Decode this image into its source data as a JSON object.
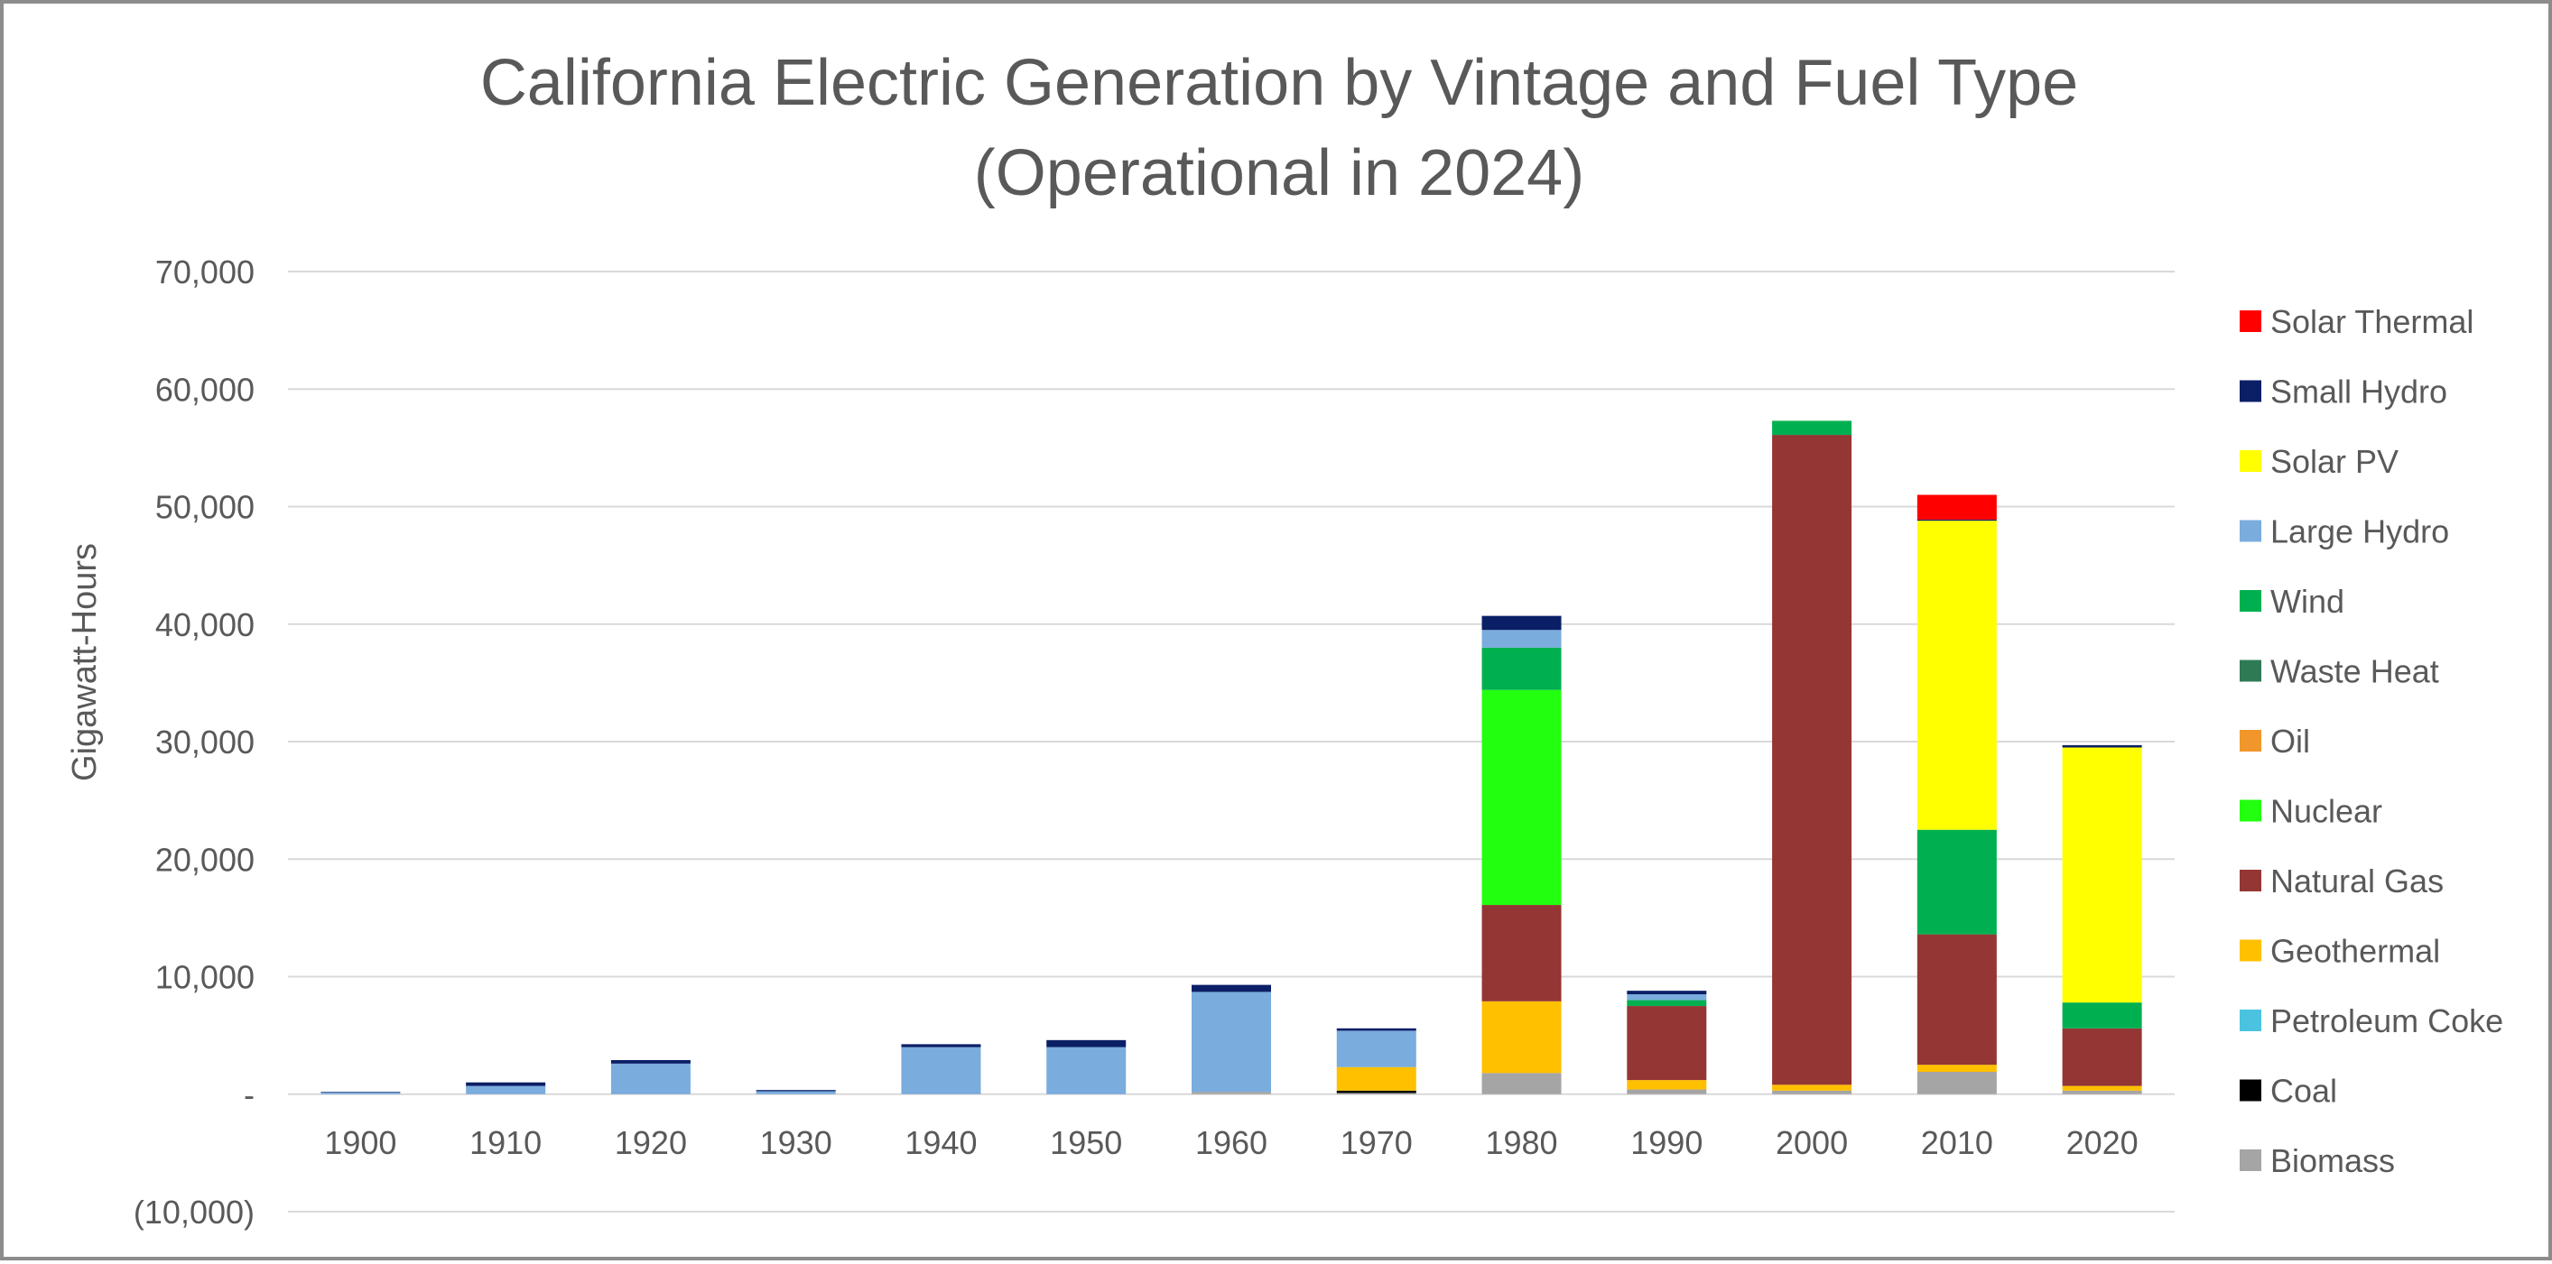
{
  "chart_data": {
    "type": "bar",
    "stacked": true,
    "title": [
      "California Electric Generation by Vintage and Fuel Type",
      "(Operational in 2024)"
    ],
    "xlabel": "",
    "ylabel": "Gigawatt-Hours",
    "ylim": [
      -10000,
      70000
    ],
    "y_ticks": [
      -10000,
      0,
      10000,
      20000,
      30000,
      40000,
      50000,
      60000,
      70000
    ],
    "y_tick_labels": [
      "(10,000)",
      "-",
      "10,000",
      "20,000",
      "30,000",
      "40,000",
      "50,000",
      "60,000",
      "70,000"
    ],
    "grid": true,
    "legend_position": "right",
    "categories": [
      "1900",
      "1910",
      "1920",
      "1930",
      "1940",
      "1950",
      "1960",
      "1970",
      "1980",
      "1990",
      "2000",
      "2010",
      "2020"
    ],
    "series": [
      {
        "name": "Biomass",
        "color": "#a5a5a5",
        "values": [
          0,
          0,
          0,
          0,
          0,
          0,
          200,
          100,
          1800,
          400,
          300,
          1900,
          300
        ]
      },
      {
        "name": "Coal",
        "color": "#000000",
        "values": [
          0,
          0,
          0,
          0,
          0,
          0,
          0,
          200,
          0,
          0,
          0,
          0,
          0
        ]
      },
      {
        "name": "Petroleum Coke",
        "color": "#4bc3e0",
        "values": [
          0,
          0,
          0,
          0,
          0,
          0,
          0,
          0,
          0,
          0,
          0,
          0,
          0
        ]
      },
      {
        "name": "Geothermal",
        "color": "#ffc000",
        "values": [
          0,
          0,
          0,
          0,
          0,
          0,
          0,
          2000,
          6100,
          800,
          500,
          600,
          400
        ]
      },
      {
        "name": "Natural Gas",
        "color": "#943634",
        "values": [
          0,
          0,
          0,
          0,
          0,
          0,
          0,
          0,
          8200,
          6300,
          55300,
          11100,
          4900
        ]
      },
      {
        "name": "Nuclear",
        "color": "#22ff0f",
        "values": [
          0,
          0,
          0,
          0,
          0,
          0,
          0,
          0,
          18300,
          0,
          0,
          0,
          0
        ]
      },
      {
        "name": "Oil",
        "color": "#f0962a",
        "values": [
          0,
          0,
          0,
          0,
          0,
          0,
          0,
          0,
          0,
          0,
          0,
          0,
          0
        ]
      },
      {
        "name": "Waste Heat",
        "color": "#2e7a55",
        "values": [
          0,
          0,
          0,
          0,
          0,
          0,
          0,
          0,
          0,
          0,
          0,
          0,
          0
        ]
      },
      {
        "name": "Wind",
        "color": "#00b050",
        "values": [
          0,
          0,
          0,
          0,
          0,
          0,
          0,
          0,
          3600,
          500,
          1200,
          8900,
          2200
        ]
      },
      {
        "name": "Large Hydro",
        "color": "#7aacdd",
        "values": [
          150,
          700,
          2600,
          250,
          4000,
          4000,
          8500,
          3100,
          1500,
          500,
          0,
          0,
          0
        ]
      },
      {
        "name": "Solar PV",
        "color": "#ffff00",
        "values": [
          0,
          0,
          0,
          0,
          0,
          0,
          0,
          0,
          0,
          0,
          0,
          26300,
          21700
        ]
      },
      {
        "name": "Small Hydro",
        "color": "#0b1f66",
        "values": [
          50,
          300,
          300,
          100,
          250,
          600,
          600,
          200,
          1200,
          300,
          0,
          100,
          200
        ]
      },
      {
        "name": "Solar Thermal",
        "color": "#ff0000",
        "values": [
          0,
          0,
          0,
          0,
          0,
          0,
          0,
          0,
          0,
          0,
          0,
          2100,
          0
        ]
      }
    ],
    "legend_order": [
      "Solar Thermal",
      "Small Hydro",
      "Solar PV",
      "Large Hydro",
      "Wind",
      "Waste Heat",
      "Oil",
      "Nuclear",
      "Natural Gas",
      "Geothermal",
      "Petroleum Coke",
      "Coal",
      "Biomass"
    ]
  }
}
